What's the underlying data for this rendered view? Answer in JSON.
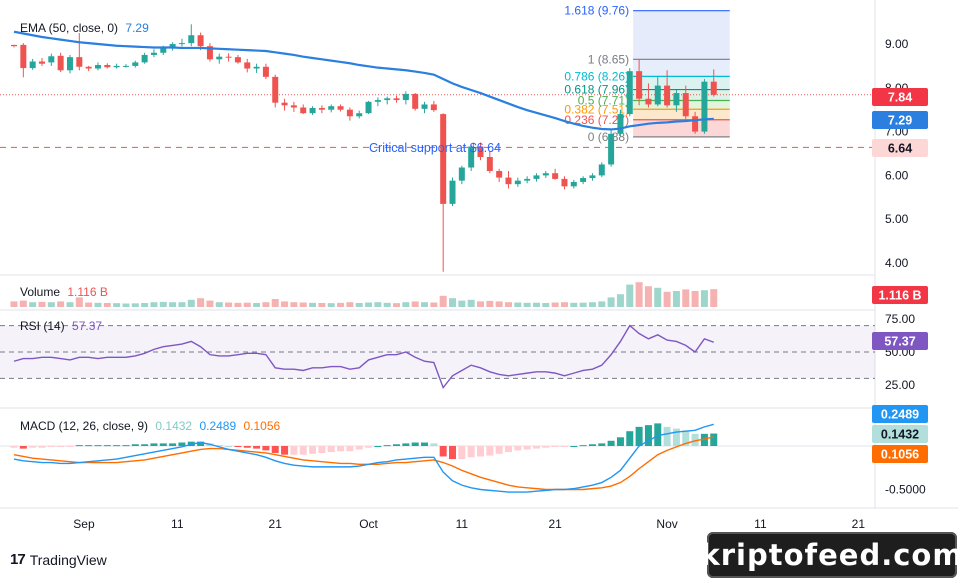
{
  "legends": {
    "ema": {
      "label": "EMA (50, close, 0)",
      "value": "7.29"
    },
    "volume": {
      "label": "Volume",
      "value": "1.116 B"
    },
    "rsi": {
      "label": "RSI (14)",
      "value": "57.37"
    },
    "macd": {
      "label": "MACD (12, 26, close, 9)",
      "hist": "0.1432",
      "macd": "0.2489",
      "signal": "0.1056"
    }
  },
  "annotation": {
    "critical_support": "Critical support at $6.64"
  },
  "brand": {
    "tradingview": "TradingView",
    "watermark": "kriptofeed.com"
  },
  "colors": {
    "up": "#26a69a",
    "down": "#ef5350",
    "ema": "#2a7fdf",
    "macd": "#2196f3",
    "signal": "#ff6d00",
    "rsi": "#7e57c2"
  },
  "chart_data": [
    {
      "type": "candlestick",
      "panel": "price",
      "x_ticks": [
        "Sep",
        "11",
        "21",
        "Oct",
        "11",
        "21",
        "Nov",
        "11",
        "21"
      ],
      "y_ticks": [
        "4.00",
        "5.00",
        "6.00",
        "7.00",
        "8.00",
        "9.00"
      ],
      "ylim": [
        3.8,
        10.0
      ],
      "last_price_label": "7.84",
      "ema_label": "7.29",
      "support_label": "6.64",
      "support_level": 6.64,
      "fib_levels": [
        {
          "label": "0 (6.88)",
          "value": 6.88
        },
        {
          "label": "0.236 (7.27)",
          "value": 7.27
        },
        {
          "label": "0.382 (7.51)",
          "value": 7.51
        },
        {
          "label": "0.5 (7.71)",
          "value": 7.71
        },
        {
          "label": "0.618 (7.96)",
          "value": 7.96
        },
        {
          "label": "0.786 (8.26)",
          "value": 8.26
        },
        {
          "label": "1 (8.65)",
          "value": 8.65
        },
        {
          "label": "1.618 (9.76)",
          "value": 9.76
        }
      ],
      "candles": [
        [
          8.98,
          8.95,
          8.92,
          8.95
        ],
        [
          8.98,
          9.02,
          8.24,
          8.45
        ],
        [
          8.45,
          8.66,
          8.41,
          8.6
        ],
        [
          8.6,
          8.68,
          8.5,
          8.55
        ],
        [
          8.58,
          8.78,
          8.5,
          8.72
        ],
        [
          8.73,
          8.8,
          8.36,
          8.4
        ],
        [
          8.4,
          8.75,
          8.33,
          8.7
        ],
        [
          8.7,
          9.25,
          8.4,
          8.48
        ],
        [
          8.48,
          8.5,
          8.38,
          8.44
        ],
        [
          8.44,
          8.58,
          8.4,
          8.52
        ],
        [
          8.52,
          8.56,
          8.44,
          8.47
        ],
        [
          8.47,
          8.55,
          8.44,
          8.5
        ],
        [
          8.5,
          8.54,
          8.46,
          8.5
        ],
        [
          8.5,
          8.62,
          8.46,
          8.58
        ],
        [
          8.58,
          8.8,
          8.55,
          8.75
        ],
        [
          8.75,
          8.88,
          8.7,
          8.8
        ],
        [
          8.8,
          8.96,
          8.75,
          8.92
        ],
        [
          8.92,
          9.04,
          8.85,
          9.0
        ],
        [
          9.0,
          9.12,
          8.94,
          9.02
        ],
        [
          9.02,
          9.45,
          8.95,
          9.2
        ],
        [
          9.2,
          9.26,
          8.86,
          8.95
        ],
        [
          8.95,
          9.02,
          8.6,
          8.65
        ],
        [
          8.65,
          8.78,
          8.55,
          8.71
        ],
        [
          8.71,
          8.79,
          8.6,
          8.7
        ],
        [
          8.7,
          8.75,
          8.55,
          8.58
        ],
        [
          8.58,
          8.66,
          8.35,
          8.44
        ],
        [
          8.44,
          8.55,
          8.34,
          8.48
        ],
        [
          8.48,
          8.55,
          8.2,
          8.25
        ],
        [
          8.25,
          8.3,
          7.55,
          7.66
        ],
        [
          7.66,
          7.75,
          7.48,
          7.6
        ],
        [
          7.6,
          7.68,
          7.45,
          7.55
        ],
        [
          7.55,
          7.62,
          7.4,
          7.42
        ],
        [
          7.42,
          7.58,
          7.38,
          7.54
        ],
        [
          7.54,
          7.6,
          7.42,
          7.5
        ],
        [
          7.5,
          7.62,
          7.44,
          7.58
        ],
        [
          7.58,
          7.62,
          7.46,
          7.5
        ],
        [
          7.5,
          7.55,
          7.25,
          7.35
        ],
        [
          7.35,
          7.48,
          7.3,
          7.42
        ],
        [
          7.42,
          7.7,
          7.4,
          7.68
        ],
        [
          7.68,
          7.78,
          7.58,
          7.72
        ],
        [
          7.72,
          7.8,
          7.62,
          7.76
        ],
        [
          7.76,
          7.82,
          7.66,
          7.72
        ],
        [
          7.72,
          7.92,
          7.62,
          7.86
        ],
        [
          7.86,
          7.88,
          7.48,
          7.52
        ],
        [
          7.52,
          7.68,
          7.42,
          7.62
        ],
        [
          7.62,
          7.7,
          7.45,
          7.49
        ],
        [
          7.4,
          7.42,
          3.8,
          5.35
        ],
        [
          5.35,
          5.95,
          5.3,
          5.88
        ],
        [
          5.88,
          6.22,
          5.8,
          6.18
        ],
        [
          6.18,
          6.7,
          6.1,
          6.66
        ],
        [
          6.66,
          6.75,
          6.35,
          6.42
        ],
        [
          6.42,
          6.55,
          6.05,
          6.1
        ],
        [
          6.1,
          6.15,
          5.85,
          5.95
        ],
        [
          5.95,
          6.1,
          5.7,
          5.8
        ],
        [
          5.8,
          5.95,
          5.74,
          5.88
        ],
        [
          5.88,
          5.98,
          5.82,
          5.92
        ],
        [
          5.92,
          6.05,
          5.86,
          6.0
        ],
        [
          6.0,
          6.1,
          5.94,
          6.05
        ],
        [
          6.05,
          6.15,
          5.9,
          5.92
        ],
        [
          5.92,
          5.98,
          5.68,
          5.75
        ],
        [
          5.75,
          5.9,
          5.7,
          5.85
        ],
        [
          5.85,
          5.98,
          5.8,
          5.94
        ],
        [
          5.94,
          6.05,
          5.88,
          6.0
        ],
        [
          6.0,
          6.3,
          5.96,
          6.25
        ],
        [
          6.25,
          7.05,
          6.2,
          6.95
        ],
        [
          6.95,
          7.5,
          6.9,
          7.4
        ],
        [
          7.4,
          8.45,
          7.35,
          8.38
        ],
        [
          8.38,
          8.64,
          7.6,
          7.75
        ],
        [
          7.75,
          8.1,
          7.55,
          7.62
        ],
        [
          7.62,
          8.25,
          7.58,
          8.05
        ],
        [
          8.05,
          8.4,
          7.55,
          7.6
        ],
        [
          7.6,
          7.95,
          7.45,
          7.88
        ],
        [
          7.88,
          8.05,
          7.25,
          7.35
        ],
        [
          7.35,
          7.45,
          6.95,
          7.0
        ],
        [
          7.0,
          8.2,
          6.95,
          8.14
        ],
        [
          8.14,
          8.42,
          7.8,
          7.84
        ]
      ],
      "ema": [
        9.28,
        9.24,
        9.2,
        9.16,
        9.13,
        9.1,
        9.07,
        9.04,
        9.02,
        9.0,
        8.98,
        8.96,
        8.95,
        8.94,
        8.93,
        8.92,
        8.92,
        8.92,
        8.91,
        8.91,
        8.91,
        8.9,
        8.89,
        8.88,
        8.87,
        8.86,
        8.85,
        8.84,
        8.81,
        8.78,
        8.75,
        8.71,
        8.68,
        8.65,
        8.62,
        8.59,
        8.56,
        8.52,
        8.49,
        8.46,
        8.44,
        8.42,
        8.4,
        8.37,
        8.34,
        8.3,
        8.2,
        8.1,
        8.02,
        7.95,
        7.88,
        7.8,
        7.72,
        7.64,
        7.56,
        7.49,
        7.43,
        7.37,
        7.31,
        7.24,
        7.18,
        7.13,
        7.09,
        7.06,
        7.05,
        7.07,
        7.12,
        7.15,
        7.18,
        7.2,
        7.21,
        7.23,
        7.24,
        7.26,
        7.28,
        7.29
      ]
    },
    {
      "type": "bar",
      "panel": "volume",
      "value_label": "1.116 B",
      "values": [
        0.35,
        0.4,
        0.3,
        0.32,
        0.3,
        0.35,
        0.3,
        0.6,
        0.28,
        0.26,
        0.25,
        0.24,
        0.22,
        0.23,
        0.25,
        0.3,
        0.32,
        0.3,
        0.3,
        0.45,
        0.55,
        0.4,
        0.3,
        0.28,
        0.26,
        0.27,
        0.25,
        0.3,
        0.5,
        0.35,
        0.3,
        0.28,
        0.26,
        0.25,
        0.24,
        0.26,
        0.3,
        0.25,
        0.28,
        0.3,
        0.26,
        0.24,
        0.3,
        0.35,
        0.3,
        0.28,
        0.7,
        0.55,
        0.4,
        0.45,
        0.35,
        0.38,
        0.35,
        0.3,
        0.28,
        0.26,
        0.27,
        0.25,
        0.28,
        0.3,
        0.26,
        0.27,
        0.3,
        0.35,
        0.6,
        0.8,
        1.4,
        1.55,
        1.3,
        1.2,
        0.95,
        1.0,
        1.1,
        1.0,
        1.05,
        1.116
      ]
    },
    {
      "type": "line",
      "panel": "rsi",
      "value_label": "57.37",
      "y_ticks": [
        "25.00",
        "50.00",
        "75.00"
      ],
      "bands": [
        30,
        50,
        70
      ],
      "values": [
        43,
        45,
        45,
        46,
        46,
        45,
        44,
        46,
        46,
        45,
        46,
        46,
        46,
        47,
        49,
        52,
        54,
        55,
        56,
        58,
        54,
        48,
        47,
        47,
        48,
        49,
        49,
        48,
        38,
        37,
        37,
        36,
        38,
        38,
        39,
        39,
        37,
        38,
        44,
        46,
        48,
        48,
        50,
        46,
        43,
        42,
        23,
        32,
        36,
        40,
        38,
        35,
        33,
        32,
        33,
        34,
        35,
        35,
        34,
        32,
        34,
        36,
        37,
        40,
        48,
        58,
        70,
        64,
        60,
        63,
        59,
        58,
        55,
        50,
        60,
        57.37
      ]
    },
    {
      "type": "bar+line",
      "panel": "macd",
      "y_ticks": [
        "-0.5000"
      ],
      "value_labels": {
        "macd": "0.2489",
        "hist": "0.1432",
        "signal": "0.1056"
      },
      "histogram": [
        -0.02,
        -0.03,
        -0.02,
        -0.02,
        -0.01,
        -0.01,
        -0.01,
        0.01,
        0.01,
        0.01,
        0.01,
        0.01,
        0.01,
        0.02,
        0.02,
        0.03,
        0.03,
        0.03,
        0.04,
        0.05,
        0.05,
        0.03,
        0.01,
        0.0,
        -0.01,
        -0.02,
        -0.03,
        -0.05,
        -0.08,
        -0.1,
        -0.1,
        -0.1,
        -0.09,
        -0.08,
        -0.07,
        -0.06,
        -0.06,
        -0.04,
        -0.02,
        0.0,
        0.01,
        0.02,
        0.03,
        0.04,
        0.04,
        0.03,
        -0.12,
        -0.15,
        -0.15,
        -0.13,
        -0.12,
        -0.11,
        -0.09,
        -0.07,
        -0.05,
        -0.04,
        -0.03,
        -0.02,
        -0.01,
        -0.01,
        0.0,
        0.01,
        0.02,
        0.03,
        0.06,
        0.1,
        0.17,
        0.22,
        0.24,
        0.26,
        0.22,
        0.2,
        0.18,
        0.14,
        0.14,
        0.1432
      ],
      "macd": [
        -0.15,
        -0.17,
        -0.18,
        -0.19,
        -0.19,
        -0.2,
        -0.2,
        -0.19,
        -0.18,
        -0.17,
        -0.16,
        -0.15,
        -0.13,
        -0.11,
        -0.09,
        -0.07,
        -0.05,
        -0.03,
        -0.01,
        0.02,
        0.04,
        0.02,
        -0.01,
        -0.04,
        -0.06,
        -0.08,
        -0.1,
        -0.13,
        -0.17,
        -0.2,
        -0.22,
        -0.23,
        -0.24,
        -0.24,
        -0.24,
        -0.24,
        -0.24,
        -0.23,
        -0.21,
        -0.19,
        -0.18,
        -0.16,
        -0.15,
        -0.14,
        -0.13,
        -0.13,
        -0.3,
        -0.4,
        -0.45,
        -0.48,
        -0.5,
        -0.51,
        -0.52,
        -0.53,
        -0.53,
        -0.53,
        -0.52,
        -0.51,
        -0.5,
        -0.5,
        -0.49,
        -0.47,
        -0.45,
        -0.42,
        -0.36,
        -0.28,
        -0.14,
        0.0,
        0.06,
        0.12,
        0.14,
        0.16,
        0.17,
        0.18,
        0.22,
        0.2489
      ],
      "signal": [
        -0.1,
        -0.12,
        -0.14,
        -0.15,
        -0.16,
        -0.17,
        -0.18,
        -0.19,
        -0.19,
        -0.19,
        -0.19,
        -0.19,
        -0.18,
        -0.17,
        -0.16,
        -0.14,
        -0.12,
        -0.1,
        -0.08,
        -0.06,
        -0.04,
        -0.03,
        -0.03,
        -0.04,
        -0.05,
        -0.06,
        -0.07,
        -0.08,
        -0.1,
        -0.12,
        -0.14,
        -0.16,
        -0.17,
        -0.18,
        -0.19,
        -0.2,
        -0.2,
        -0.21,
        -0.21,
        -0.21,
        -0.2,
        -0.19,
        -0.19,
        -0.18,
        -0.17,
        -0.16,
        -0.19,
        -0.23,
        -0.28,
        -0.32,
        -0.36,
        -0.39,
        -0.42,
        -0.45,
        -0.47,
        -0.48,
        -0.49,
        -0.5,
        -0.5,
        -0.5,
        -0.5,
        -0.5,
        -0.49,
        -0.48,
        -0.46,
        -0.42,
        -0.35,
        -0.26,
        -0.18,
        -0.1,
        -0.05,
        -0.01,
        0.03,
        0.06,
        0.08,
        0.1056
      ]
    }
  ]
}
